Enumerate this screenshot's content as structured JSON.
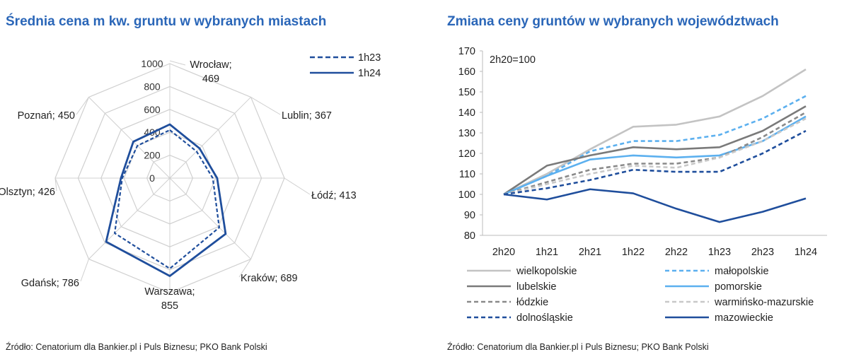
{
  "colors": {
    "title": "#2a66b8",
    "dark_blue": "#1f4e9c",
    "light_blue": "#5cb0ef",
    "light_gray": "#c3c3c3",
    "dark_gray": "#7a7a7a",
    "mid_gray": "#8a8a8a",
    "pale_gray": "#c8c8c8",
    "grid": "#d0d0d0"
  },
  "left": {
    "title": "Średnia cena m kw. gruntu w wybranych miastach",
    "source": "Źródło: Cenatorium dla Bankier.pl i Puls Biznesu; PKO Bank Polski"
  },
  "right": {
    "title": "Zmiana ceny gruntów w wybranych województwach",
    "source": "Źródło: Cenatorium dla Bankier.pl i Puls Biznesu; PKO Bank Polski"
  },
  "chart_data": [
    {
      "type": "radar",
      "title": "Średnia cena m kw. gruntu w wybranych miastach",
      "rlim": [
        0,
        1000
      ],
      "rticks": [
        0,
        200,
        400,
        600,
        800,
        1000
      ],
      "categories": [
        "Wrocław",
        "Lublin",
        "Łódź",
        "Kraków",
        "Warszawa",
        "Gdańsk",
        "Olsztyn",
        "Poznań"
      ],
      "category_labels": [
        "Wrocław;\n469",
        "Lublin; 367",
        "Łódź; 413",
        "Kraków; 689",
        "Warszawa;\n855",
        "Gdańsk; 786",
        "Olsztyn; 426",
        "Poznań; 450"
      ],
      "series": [
        {
          "name": "1h23",
          "style": "dashed",
          "color": "#1f4e9c",
          "values": [
            420,
            330,
            375,
            610,
            790,
            680,
            415,
            400
          ]
        },
        {
          "name": "1h24",
          "style": "solid",
          "color": "#1f4e9c",
          "values": [
            469,
            367,
            413,
            689,
            855,
            786,
            426,
            450
          ]
        }
      ],
      "legend_position": "top-right",
      "grid": true
    },
    {
      "type": "line",
      "title": "Zmiana ceny gruntów w wybranych województwach",
      "annotation": "2h20=100",
      "x": [
        "2h20",
        "1h21",
        "2h21",
        "1h22",
        "2h22",
        "1h23",
        "2h23",
        "1h24"
      ],
      "ylim": [
        80,
        170
      ],
      "yticks": [
        80,
        90,
        100,
        110,
        120,
        130,
        140,
        150,
        160,
        170
      ],
      "grid": false,
      "legend_position": "bottom",
      "series": [
        {
          "name": "wielkopolskie",
          "style": "solid",
          "color": "#c3c3c3",
          "values": [
            100,
            110,
            122,
            133,
            134,
            138,
            148,
            161
          ]
        },
        {
          "name": "małopolskie",
          "style": "dashed",
          "color": "#5cb0ef",
          "values": [
            100,
            109,
            121,
            126,
            126,
            129,
            137,
            148
          ]
        },
        {
          "name": "lubelskie",
          "style": "solid",
          "color": "#7a7a7a",
          "values": [
            100,
            114,
            119,
            123,
            122,
            123,
            131,
            143
          ]
        },
        {
          "name": "pomorskie",
          "style": "solid",
          "color": "#5cb0ef",
          "values": [
            100,
            109,
            117,
            119,
            118,
            119,
            126,
            138
          ]
        },
        {
          "name": "łódzkie",
          "style": "dashed",
          "color": "#8a8a8a",
          "values": [
            100,
            106,
            112,
            115,
            115,
            118,
            128,
            140
          ]
        },
        {
          "name": "warmińsko-mazurskie",
          "style": "dashed",
          "color": "#c8c8c8",
          "values": [
            100,
            105,
            110,
            114,
            113,
            118,
            126,
            137
          ]
        },
        {
          "name": "dolnośląskie",
          "style": "dashed",
          "color": "#1f4e9c",
          "values": [
            100,
            103,
            107,
            112,
            111,
            111,
            120,
            131
          ]
        },
        {
          "name": "mazowieckie",
          "style": "solid",
          "color": "#1f4e9c",
          "values": [
            100,
            97.5,
            102.5,
            100.5,
            93,
            86.5,
            91.5,
            98
          ]
        }
      ]
    }
  ]
}
